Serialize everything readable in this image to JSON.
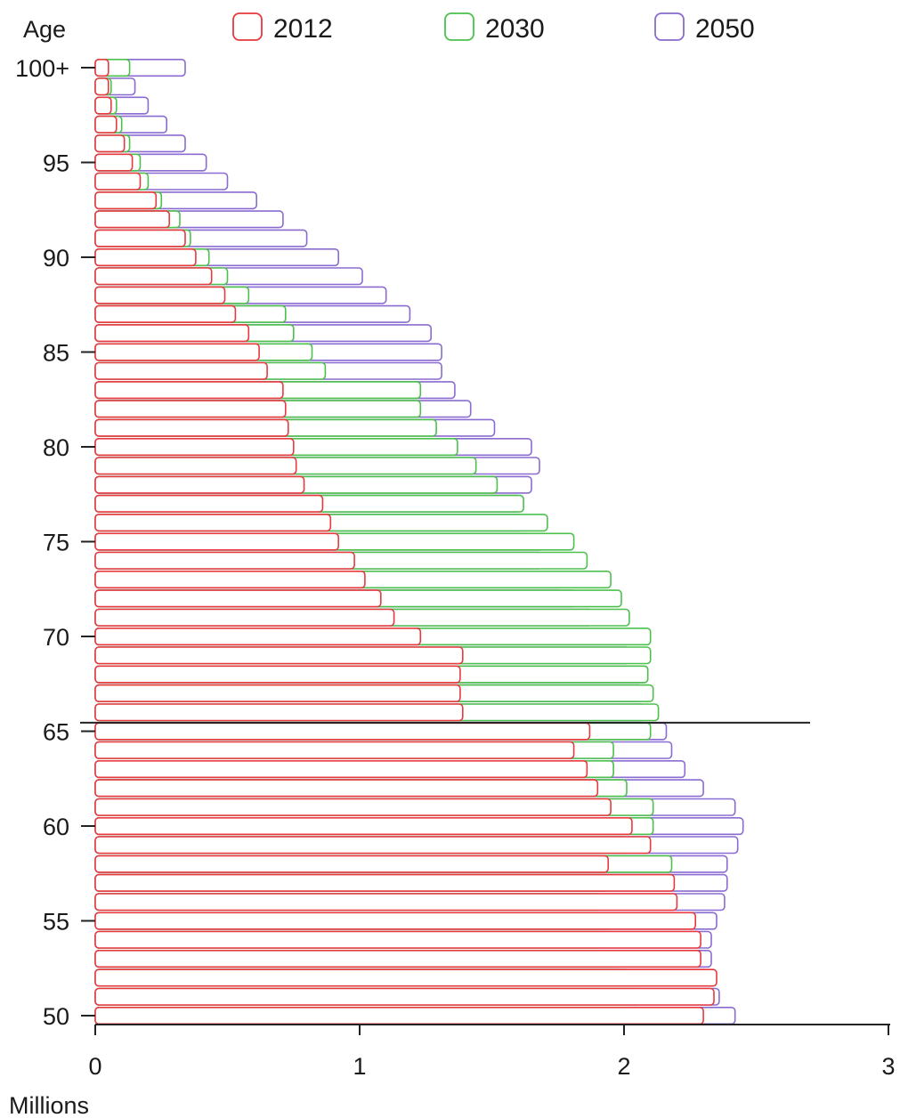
{
  "chart_data": {
    "type": "bar",
    "orientation": "horizontal",
    "layering": "overlapping",
    "ylabel": "Age",
    "xlabel": "Millions",
    "xlim": [
      0,
      3
    ],
    "x_ticks": [
      0,
      1,
      2,
      3
    ],
    "y_tick_labels": [
      "50",
      "55",
      "60",
      "65",
      "70",
      "75",
      "80",
      "85",
      "90",
      "95",
      "100+"
    ],
    "categories": [
      "50",
      "51",
      "52",
      "53",
      "54",
      "55",
      "56",
      "57",
      "58",
      "59",
      "60",
      "61",
      "62",
      "63",
      "64",
      "65",
      "66",
      "67",
      "68",
      "69",
      "70",
      "71",
      "72",
      "73",
      "74",
      "75",
      "76",
      "77",
      "78",
      "79",
      "80",
      "81",
      "82",
      "83",
      "84",
      "85",
      "86",
      "87",
      "88",
      "89",
      "90",
      "91",
      "92",
      "93",
      "94",
      "95",
      "96",
      "97",
      "98",
      "99",
      "100+"
    ],
    "reference_line": {
      "age": "65"
    },
    "legend": {
      "position": "top"
    },
    "colors": {
      "2012": "#e8393f",
      "2030": "#4cc04c",
      "2050": "#8a6bd1",
      "axis": "#222222"
    },
    "series": [
      {
        "name": "2012",
        "values": [
          2.3,
          2.34,
          2.35,
          2.29,
          2.29,
          2.27,
          2.2,
          2.19,
          1.94,
          2.1,
          2.03,
          1.95,
          1.9,
          1.86,
          1.81,
          1.87,
          1.39,
          1.38,
          1.38,
          1.39,
          1.23,
          1.13,
          1.08,
          1.02,
          0.98,
          0.92,
          0.89,
          0.86,
          0.79,
          0.76,
          0.75,
          0.73,
          0.72,
          0.71,
          0.65,
          0.62,
          0.58,
          0.53,
          0.49,
          0.44,
          0.38,
          0.34,
          0.28,
          0.23,
          0.17,
          0.14,
          0.11,
          0.08,
          0.06,
          0.05,
          0.05
        ]
      },
      {
        "name": "2030",
        "values": [
          2.19,
          2.06,
          2.02,
          1.99,
          1.92,
          1.96,
          1.91,
          1.94,
          2.18,
          2.01,
          2.11,
          2.11,
          2.01,
          1.96,
          1.96,
          2.1,
          2.13,
          2.11,
          2.09,
          2.1,
          2.1,
          2.02,
          1.99,
          1.95,
          1.86,
          1.81,
          1.71,
          1.62,
          1.52,
          1.44,
          1.37,
          1.29,
          1.23,
          1.23,
          0.87,
          0.82,
          0.75,
          0.72,
          0.58,
          0.5,
          0.43,
          0.36,
          0.32,
          0.25,
          0.2,
          0.17,
          0.13,
          0.1,
          0.08,
          0.06,
          0.13
        ]
      },
      {
        "name": "2050",
        "values": [
          2.42,
          2.36,
          2.32,
          2.33,
          2.33,
          2.35,
          2.38,
          2.39,
          2.39,
          2.43,
          2.45,
          2.42,
          2.3,
          2.23,
          2.18,
          2.16,
          2.08,
          2.07,
          2.09,
          2.02,
          2.02,
          1.88,
          1.82,
          1.77,
          1.69,
          1.7,
          1.62,
          1.61,
          1.65,
          1.68,
          1.65,
          1.51,
          1.42,
          1.36,
          1.31,
          1.31,
          1.27,
          1.19,
          1.1,
          1.01,
          0.92,
          0.8,
          0.71,
          0.61,
          0.5,
          0.42,
          0.34,
          0.27,
          0.2,
          0.15,
          0.34
        ]
      }
    ]
  }
}
